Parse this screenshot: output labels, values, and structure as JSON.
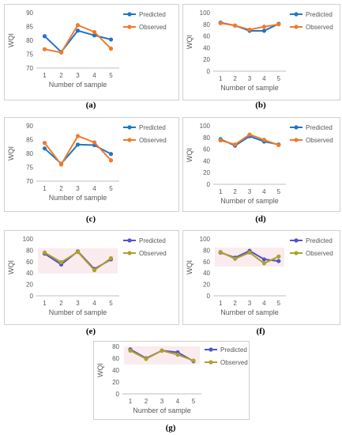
{
  "figure": {
    "captions": [
      "(a)",
      "(b)",
      "(c)",
      "(d)",
      "(e)",
      "(f)",
      "(g)"
    ]
  },
  "colors": {
    "predicted_blue": "#1F77C4",
    "observed_orange": "#F27A2A",
    "predicted_purple": "#5154C8",
    "observed_olive": "#AFA02B",
    "pink_highlight": "#F2C7CE",
    "axis": "#BFBFBF",
    "text": "#595959"
  },
  "chart_data": [
    {
      "panel": "(a)",
      "type": "line",
      "x": [
        1,
        2,
        3,
        4,
        5
      ],
      "xlabel": "Number of sample",
      "ylabel": "WQI",
      "ylim": [
        70,
        90
      ],
      "yticks": [
        70,
        75,
        80,
        85,
        90
      ],
      "legend": "right",
      "series": [
        {
          "name": "Predicted",
          "color": "#1F77C4",
          "values": [
            81.5,
            75.8,
            83.5,
            81.8,
            80.3
          ]
        },
        {
          "name": "Observed",
          "color": "#F27A2A",
          "values": [
            76.8,
            75.6,
            85.5,
            83.0,
            77.0
          ]
        }
      ]
    },
    {
      "panel": "(b)",
      "type": "line",
      "x": [
        1,
        2,
        3,
        4,
        5
      ],
      "xlabel": "Number of sample",
      "ylabel": "WQI",
      "ylim": [
        0,
        100
      ],
      "yticks": [
        0,
        20,
        40,
        60,
        80,
        100
      ],
      "legend": "right",
      "series": [
        {
          "name": "Predicted",
          "color": "#1F77C4",
          "values": [
            83,
            78,
            69,
            69,
            81
          ]
        },
        {
          "name": "Observed",
          "color": "#F27A2A",
          "values": [
            82,
            78,
            71,
            76,
            80
          ]
        }
      ]
    },
    {
      "panel": "(c)",
      "type": "line",
      "x": [
        1,
        2,
        3,
        4,
        5
      ],
      "xlabel": "Number of sample",
      "ylabel": "WQI",
      "ylim": [
        70,
        90
      ],
      "yticks": [
        70,
        75,
        80,
        85,
        90
      ],
      "legend": "right",
      "series": [
        {
          "name": "Predicted",
          "color": "#1F77C4",
          "values": [
            81.8,
            76.3,
            83.2,
            83.0,
            79.8
          ]
        },
        {
          "name": "Observed",
          "color": "#F27A2A",
          "values": [
            83.8,
            76.0,
            86.3,
            84.0,
            77.5
          ]
        }
      ]
    },
    {
      "panel": "(d)",
      "type": "line",
      "x": [
        1,
        2,
        3,
        4,
        5
      ],
      "xlabel": "Number of sample",
      "ylabel": "WQI",
      "ylim": [
        0,
        100
      ],
      "yticks": [
        0,
        20,
        40,
        60,
        80,
        100
      ],
      "legend": "right",
      "series": [
        {
          "name": "Predicted",
          "color": "#1F77C4",
          "values": [
            77,
            66,
            82,
            73,
            68
          ]
        },
        {
          "name": "Observed",
          "color": "#F27A2A",
          "values": [
            75,
            68,
            85,
            76,
            67
          ]
        }
      ]
    },
    {
      "panel": "(e)",
      "type": "line",
      "x": [
        1,
        2,
        3,
        4,
        5
      ],
      "xlabel": "Number of sample",
      "ylabel": "WQI",
      "ylim": [
        0,
        100
      ],
      "yticks": [
        0,
        20,
        40,
        60,
        80,
        100
      ],
      "legend": "right",
      "series": [
        {
          "name": "Predicted",
          "color": "#5154C8",
          "values": [
            74,
            55,
            78,
            47,
            64
          ]
        },
        {
          "name": "Observed",
          "color": "#AFA02B",
          "values": [
            76,
            59,
            77,
            45,
            66
          ]
        }
      ]
    },
    {
      "panel": "(f)",
      "type": "line",
      "x": [
        1,
        2,
        3,
        4,
        5
      ],
      "xlabel": "Number of sample",
      "ylabel": "WQI",
      "ylim": [
        0,
        100
      ],
      "yticks": [
        0,
        20,
        40,
        60,
        80,
        100
      ],
      "legend": "right",
      "series": [
        {
          "name": "Predicted",
          "color": "#5154C8",
          "values": [
            76,
            67,
            79,
            64,
            61
          ]
        },
        {
          "name": "Observed",
          "color": "#AFA02B",
          "values": [
            77,
            65,
            76,
            57,
            69
          ]
        }
      ]
    },
    {
      "panel": "(g)",
      "type": "line",
      "x": [
        1,
        2,
        3,
        4,
        5
      ],
      "xlabel": "Number of sample",
      "ylabel": "WQI",
      "ylim": [
        0,
        80
      ],
      "yticks": [
        0,
        20,
        40,
        60,
        80
      ],
      "legend": "right",
      "series": [
        {
          "name": "Predicted",
          "color": "#5154C8",
          "values": [
            75,
            60,
            73,
            70,
            55
          ]
        },
        {
          "name": "Observed",
          "color": "#AFA02B",
          "values": [
            73,
            59,
            73,
            66,
            56
          ]
        }
      ]
    }
  ]
}
